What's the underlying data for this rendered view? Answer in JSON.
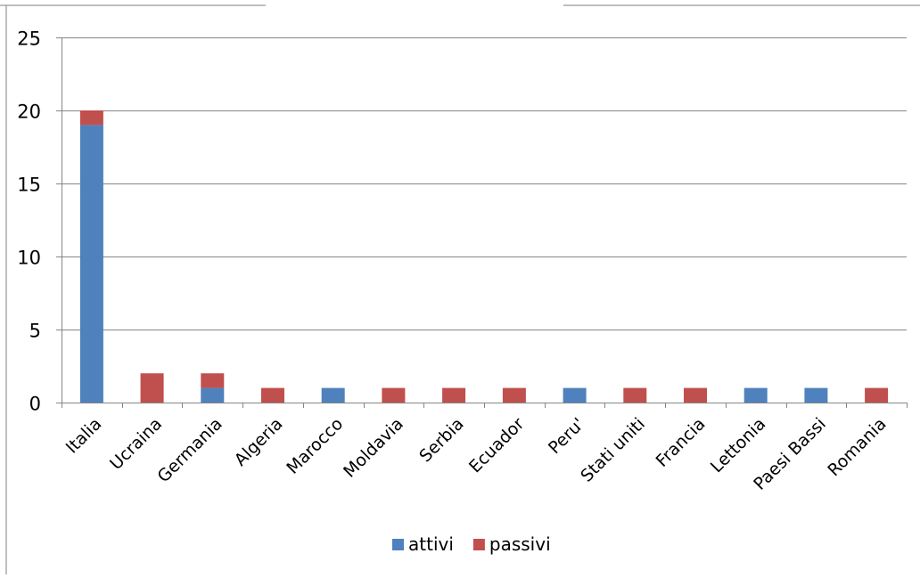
{
  "chart_data": {
    "type": "bar",
    "stacked": true,
    "title": "",
    "xlabel": "",
    "ylabel": "",
    "categories": [
      "Italia",
      "Ucraina",
      "Germania",
      "Algeria",
      "Marocco",
      "Moldavia",
      "Serbia",
      "Ecuador",
      "Peru'",
      "Stati  uniti",
      "Francia",
      "Lettonia",
      "Paesi Bassi",
      "Romania"
    ],
    "series": [
      {
        "name": "attivi",
        "color": "#4f81bd",
        "values": [
          19,
          0,
          1,
          0,
          1,
          0,
          0,
          0,
          1,
          0,
          0,
          1,
          1,
          0
        ]
      },
      {
        "name": "passivi",
        "color": "#c0504d",
        "values": [
          1,
          2,
          1,
          1,
          0,
          1,
          1,
          1,
          0,
          1,
          1,
          0,
          0,
          1
        ]
      }
    ],
    "ylim": [
      0,
      25
    ],
    "yticks": [
      0,
      5,
      10,
      15,
      20,
      25
    ],
    "grid": true,
    "legend": "bottom"
  }
}
